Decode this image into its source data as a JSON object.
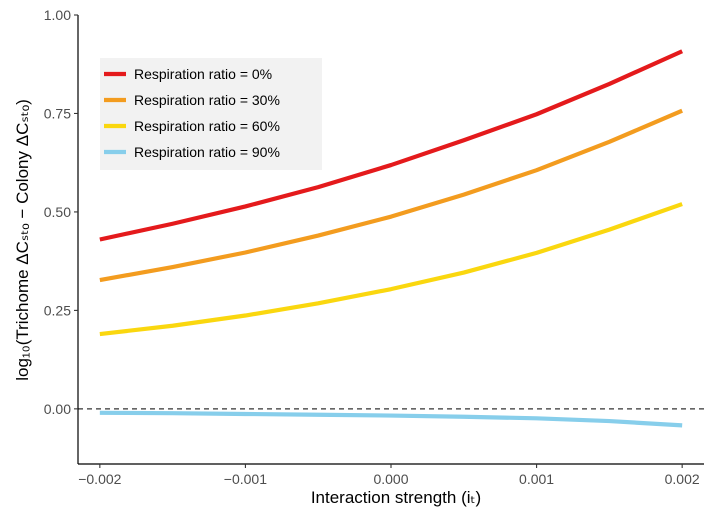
{
  "chart_data": {
    "type": "line",
    "x": [
      -0.002,
      -0.0015,
      -0.001,
      -0.0005,
      0.0,
      0.0005,
      0.001,
      0.0015,
      0.002
    ],
    "series": [
      {
        "name": "Respiration ratio = 0%",
        "color": "#e41a1c",
        "values": [
          0.43,
          0.47,
          0.514,
          0.563,
          0.619,
          0.682,
          0.748,
          0.825,
          0.908
        ]
      },
      {
        "name": "Respiration ratio = 30%",
        "color": "#f39c1f",
        "values": [
          0.327,
          0.36,
          0.397,
          0.44,
          0.488,
          0.544,
          0.606,
          0.678,
          0.757
        ]
      },
      {
        "name": "Respiration ratio = 60%",
        "color": "#fad70f",
        "values": [
          0.19,
          0.211,
          0.237,
          0.268,
          0.304,
          0.346,
          0.396,
          0.455,
          0.52
        ]
      },
      {
        "name": "Respiration ratio = 90%",
        "color": "#87ceeb",
        "values": [
          -0.01,
          -0.011,
          -0.013,
          -0.015,
          -0.017,
          -0.02,
          -0.024,
          -0.031,
          -0.042
        ]
      }
    ],
    "xlim": [
      -0.00215,
      0.00215
    ],
    "ylim": [
      -0.14,
      1.0
    ],
    "xticks": [
      -0.002,
      -0.001,
      0.0,
      0.001,
      0.002
    ],
    "xtick_labels": [
      "−0.002",
      "−0.001",
      "0.000",
      "0.001",
      "0.002"
    ],
    "yticks": [
      0.0,
      0.25,
      0.5,
      0.75,
      1.0
    ],
    "ytick_labels": [
      "0.00",
      "0.25",
      "0.50",
      "0.75",
      "1.00"
    ],
    "xlabel": "Interaction strength (iₜ)",
    "ylabel": "log₁₀(Trichome ΔCₛₜₒ − Colony ΔCₛₜₒ)",
    "reference_line": {
      "y": 0,
      "style": "dashed"
    },
    "legend": {
      "position": "top-left"
    },
    "grid": false
  }
}
